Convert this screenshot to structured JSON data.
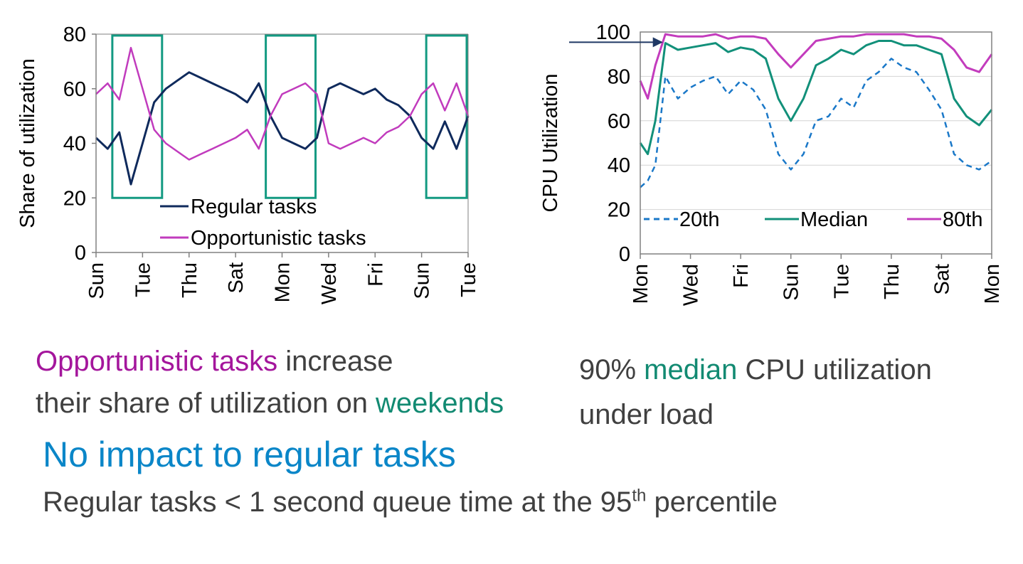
{
  "colors": {
    "regular": "#0f2a5c",
    "opportunistic": "#c13bbd",
    "highlight_box": "#139a82",
    "p20": "#1a78c8",
    "median": "#12907a",
    "p80": "#c33cbd",
    "caption_gray": "#404040",
    "caption_magenta": "#a4169c",
    "caption_teal": "#128a72",
    "caption_blue": "#0a86c8"
  },
  "captions": {
    "left_line1_a": "Opportunistic tasks",
    "left_line1_b": " increase",
    "left_line2_a": "their share of utilization on ",
    "left_line2_b": "weekends",
    "right_line1_a": "90% ",
    "right_line1_b": "median",
    "right_line1_c": " CPU utilization",
    "right_line2": "under load",
    "headline": "No impact to regular tasks",
    "footnote_a": "Regular tasks < 1 second queue time at the 95",
    "footnote_sup": "th",
    "footnote_b": " percentile"
  },
  "chart_data": [
    {
      "type": "line",
      "title": "",
      "ylabel": "Share of utilization",
      "xlabel": "",
      "ylim": [
        0,
        80
      ],
      "yticks": [
        0,
        20,
        40,
        60,
        80
      ],
      "xlim": [
        0,
        16
      ],
      "xticks": [
        {
          "x": 0,
          "label": "Sun"
        },
        {
          "x": 2,
          "label": "Tue"
        },
        {
          "x": 4,
          "label": "Thu"
        },
        {
          "x": 6,
          "label": "Sat"
        },
        {
          "x": 8,
          "label": "Mon"
        },
        {
          "x": 10,
          "label": "Wed"
        },
        {
          "x": 12,
          "label": "Fri"
        },
        {
          "x": 14,
          "label": "Sun"
        },
        {
          "x": 16,
          "label": "Tue"
        }
      ],
      "grid": false,
      "legend": "bottom-center",
      "highlight_spans": [
        [
          0.7,
          2.9
        ],
        [
          7.3,
          9.5
        ],
        [
          14.2,
          16
        ]
      ],
      "series": [
        {
          "name": "Regular tasks",
          "x": [
            0,
            0.5,
            1,
            1.5,
            2,
            2.5,
            3,
            3.5,
            4,
            4.5,
            5,
            5.5,
            6,
            6.5,
            7,
            7.5,
            8,
            8.5,
            9,
            9.5,
            10,
            10.5,
            11,
            11.5,
            12,
            12.5,
            13,
            13.5,
            14,
            14.5,
            15,
            15.5,
            16
          ],
          "values": [
            42,
            38,
            44,
            25,
            40,
            55,
            60,
            63,
            66,
            64,
            62,
            60,
            58,
            55,
            62,
            50,
            42,
            40,
            38,
            42,
            60,
            62,
            60,
            58,
            60,
            56,
            54,
            50,
            42,
            38,
            48,
            38,
            50
          ]
        },
        {
          "name": "Opportunistic tasks",
          "x": [
            0,
            0.5,
            1,
            1.5,
            2,
            2.5,
            3,
            3.5,
            4,
            4.5,
            5,
            5.5,
            6,
            6.5,
            7,
            7.5,
            8,
            8.5,
            9,
            9.5,
            10,
            10.5,
            11,
            11.5,
            12,
            12.5,
            13,
            13.5,
            14,
            14.5,
            15,
            15.5,
            16
          ],
          "values": [
            58,
            62,
            56,
            75,
            60,
            45,
            40,
            37,
            34,
            36,
            38,
            40,
            42,
            45,
            38,
            50,
            58,
            60,
            62,
            58,
            40,
            38,
            40,
            42,
            40,
            44,
            46,
            50,
            58,
            62,
            52,
            62,
            50
          ]
        }
      ]
    },
    {
      "type": "line",
      "title": "",
      "ylabel": "CPU Utilization",
      "xlabel": "",
      "ylim": [
        0,
        100
      ],
      "yticks": [
        0,
        20,
        40,
        60,
        80,
        100
      ],
      "xlim": [
        0,
        14
      ],
      "xticks": [
        {
          "x": 0,
          "label": "Mon"
        },
        {
          "x": 2,
          "label": "Wed"
        },
        {
          "x": 4,
          "label": "Fri"
        },
        {
          "x": 6,
          "label": "Sun"
        },
        {
          "x": 8,
          "label": "Tue"
        },
        {
          "x": 10,
          "label": "Thu"
        },
        {
          "x": 12,
          "label": "Sat"
        },
        {
          "x": 14,
          "label": "Mon"
        }
      ],
      "grid": true,
      "legend": "bottom",
      "series": [
        {
          "name": "20th",
          "x": [
            0,
            0.3,
            0.6,
            1,
            1.5,
            2,
            2.5,
            3,
            3.5,
            4,
            4.5,
            5,
            5.5,
            6,
            6.5,
            7,
            7.5,
            8,
            8.5,
            9,
            9.5,
            10,
            10.5,
            11,
            11.5,
            12,
            12.5,
            13,
            13.5,
            14
          ],
          "values": [
            30,
            33,
            40,
            80,
            70,
            75,
            78,
            80,
            72,
            78,
            74,
            65,
            45,
            38,
            45,
            60,
            62,
            70,
            66,
            78,
            82,
            88,
            84,
            82,
            74,
            65,
            45,
            40,
            38,
            42
          ]
        },
        {
          "name": "Median",
          "x": [
            0,
            0.3,
            0.6,
            1,
            1.5,
            2,
            2.5,
            3,
            3.5,
            4,
            4.5,
            5,
            5.5,
            6,
            6.5,
            7,
            7.5,
            8,
            8.5,
            9,
            9.5,
            10,
            10.5,
            11,
            11.5,
            12,
            12.5,
            13,
            13.5,
            14
          ],
          "values": [
            50,
            45,
            60,
            95,
            92,
            93,
            94,
            95,
            91,
            93,
            92,
            88,
            70,
            60,
            70,
            85,
            88,
            92,
            90,
            94,
            96,
            96,
            94,
            94,
            92,
            90,
            70,
            62,
            58,
            65
          ]
        },
        {
          "name": "80th",
          "x": [
            0,
            0.3,
            0.6,
            1,
            1.5,
            2,
            2.5,
            3,
            3.5,
            4,
            4.5,
            5,
            5.5,
            6,
            6.5,
            7,
            7.5,
            8,
            8.5,
            9,
            9.5,
            10,
            10.5,
            11,
            11.5,
            12,
            12.5,
            13,
            13.5,
            14
          ],
          "values": [
            78,
            70,
            85,
            99,
            98,
            98,
            98,
            99,
            97,
            98,
            98,
            97,
            90,
            84,
            90,
            96,
            97,
            98,
            98,
            99,
            99,
            99,
            99,
            98,
            98,
            97,
            92,
            84,
            82,
            90
          ]
        }
      ],
      "annotation_arrow_value": 97
    }
  ]
}
